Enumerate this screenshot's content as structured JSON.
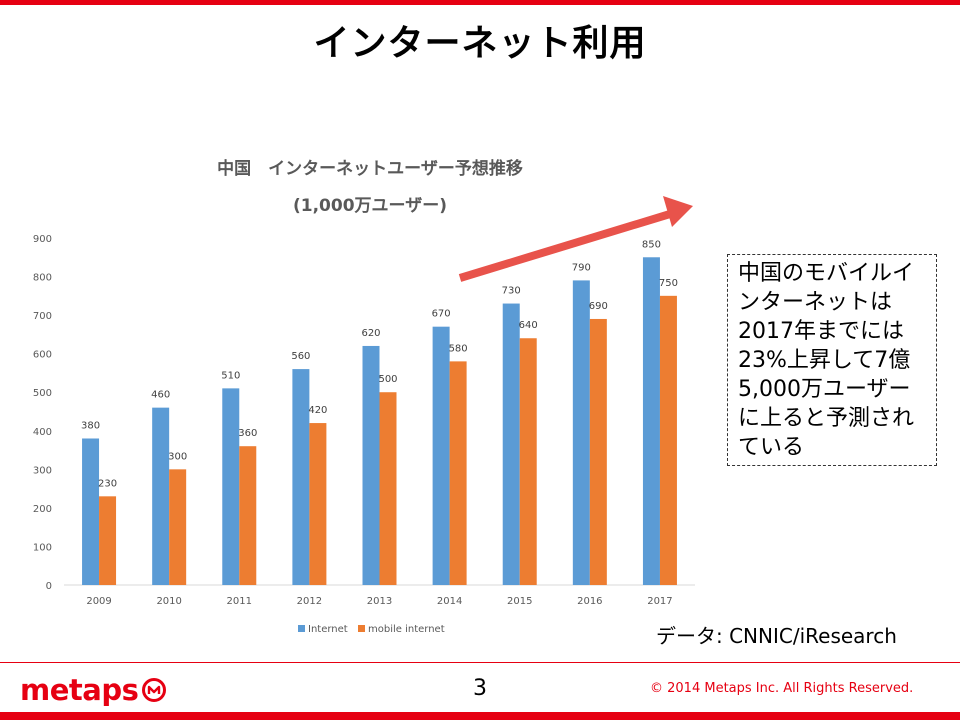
{
  "slide": {
    "title": "インターネット利用",
    "callout": "中国のモバイルインターネットは2017年までには23%上昇して7億5,000万ユーザーに上ると予測されている",
    "source": "データ: CNNIC/iResearch",
    "page_number": "3",
    "copyright": "© 2014  Metaps Inc. All Rights Reserved.",
    "logo_text": "metaps",
    "brand_color": "#e60012"
  },
  "chart_data": {
    "type": "bar",
    "title": "中国　インターネットユーザー予想推移",
    "subtitle": "(1,000万ユーザー)",
    "categories": [
      "2009",
      "2010",
      "2011",
      "2012",
      "2013",
      "2014",
      "2015",
      "2016",
      "2017"
    ],
    "series": [
      {
        "name": "Internet",
        "color": "#5b9bd5",
        "values": [
          380,
          460,
          510,
          560,
          620,
          670,
          730,
          790,
          850
        ]
      },
      {
        "name": "mobile internet",
        "color": "#ed7d31",
        "values": [
          230,
          300,
          360,
          420,
          500,
          580,
          640,
          690,
          750
        ]
      }
    ],
    "ylim": [
      0,
      900
    ],
    "yticks": [
      "0",
      "100",
      "200",
      "300",
      "400",
      "500",
      "600",
      "700",
      "800",
      "900"
    ],
    "grid": false,
    "legend": "bottom",
    "annotations": [
      {
        "type": "arrow",
        "color": "#e8534b",
        "direction": "up-right"
      }
    ]
  }
}
